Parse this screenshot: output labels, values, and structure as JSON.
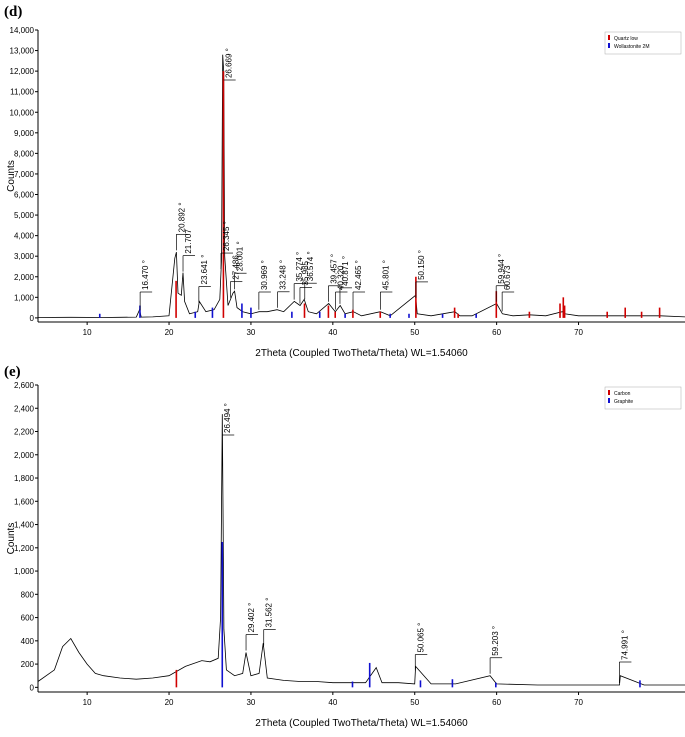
{
  "chart_data": [
    {
      "type": "line",
      "panel": "(d)",
      "xlabel": "2Theta (Coupled TwoTheta/Theta) WL=1.54060",
      "ylabel": "Counts",
      "xlim": [
        4,
        83
      ],
      "ylim": [
        -200,
        14000
      ],
      "xticks": [
        10,
        20,
        30,
        40,
        50,
        60,
        70
      ],
      "yticks": [
        0,
        {
          "value": 1000,
          "label": "1,000"
        },
        {
          "value": 2000,
          "label": "2,000"
        },
        {
          "value": 3000,
          "label": "3,000"
        },
        {
          "value": 4000,
          "label": "4,000"
        },
        {
          "value": 5000,
          "label": "5,000"
        },
        {
          "value": 6000,
          "label": "6,000"
        },
        {
          "value": 7000,
          "label": "7,000"
        },
        {
          "value": 8000,
          "label": "8,000"
        },
        {
          "value": 9000,
          "label": "9,000"
        },
        {
          "value": 10000,
          "label": "10,000"
        },
        {
          "value": 11000,
          "label": "11,000"
        },
        {
          "value": 12000,
          "label": "12,000"
        },
        {
          "value": 13000,
          "label": "13,000"
        },
        {
          "value": 14000,
          "label": "14,000"
        }
      ],
      "series": [
        {
          "color": "#000000",
          "x": [
            4,
            8,
            12,
            14,
            16,
            16.4,
            16.6,
            18,
            20,
            20.7,
            20.9,
            21.1,
            21.5,
            21.7,
            21.9,
            22.5,
            23.5,
            23.7,
            24.5,
            25.5,
            26.2,
            26.4,
            26.55,
            26.67,
            26.8,
            27.2,
            27.5,
            27.8,
            28.0,
            28.3,
            29,
            30,
            31,
            32,
            33.2,
            34,
            35.3,
            36,
            36.5,
            37,
            38,
            39.5,
            40.3,
            40.9,
            41.5,
            42.5,
            43.5,
            45.8,
            47,
            50.1,
            50.3,
            52,
            54.9,
            55.5,
            57,
            60,
            60.7,
            62,
            64,
            66,
            68,
            68.3,
            70,
            73.5,
            76,
            80,
            83
          ],
          "values": [
            20,
            30,
            20,
            30,
            40,
            400,
            40,
            50,
            100,
            2900,
            3200,
            1200,
            1100,
            2200,
            800,
            200,
            300,
            800,
            300,
            400,
            900,
            2800,
            12800,
            12000,
            3000,
            600,
            900,
            1200,
            1300,
            500,
            300,
            200,
            300,
            300,
            400,
            300,
            800,
            600,
            900,
            300,
            200,
            700,
            300,
            600,
            200,
            300,
            100,
            300,
            100,
            1100,
            200,
            100,
            300,
            100,
            100,
            700,
            200,
            100,
            150,
            100,
            300,
            200,
            100,
            100,
            100,
            100,
            50
          ]
        },
        {
          "name": "Quartz low",
          "color": "#d00000",
          "style": "stick",
          "x": [
            20.86,
            26.64,
            36.54,
            39.46,
            40.29,
            42.45,
            45.79,
            50.14,
            54.87,
            55.3,
            59.96,
            64.0,
            67.74,
            68.14,
            68.3,
            73.5,
            75.7,
            77.7,
            79.9
          ],
          "values": [
            1800,
            12000,
            700,
            600,
            300,
            400,
            300,
            2000,
            500,
            200,
            1300,
            300,
            700,
            1000,
            600,
            300,
            500,
            300,
            500
          ]
        },
        {
          "name": "Wollastonite 2M",
          "color": "#1010d0",
          "style": "stick",
          "x": [
            11.54,
            16.45,
            23.2,
            25.3,
            28.9,
            30.0,
            35.0,
            38.4,
            41.5,
            47.0,
            49.3,
            53.4,
            57.5
          ],
          "values": [
            200,
            600,
            300,
            500,
            700,
            500,
            300,
            300,
            200,
            200,
            200,
            200,
            200
          ]
        }
      ],
      "annotations": [
        {
          "x": 16.47,
          "label": "16.470 °"
        },
        {
          "x": 20.892,
          "label": "20.892 °"
        },
        {
          "x": 21.707,
          "label": "21.707"
        },
        {
          "x": 23.641,
          "label": "23.641 °"
        },
        {
          "x": 26.345,
          "label": "26.345 °"
        },
        {
          "x": 26.669,
          "label": "26.669 °"
        },
        {
          "x": 27.486,
          "label": "27.486"
        },
        {
          "x": 28.001,
          "label": "28.001 °"
        },
        {
          "x": 30.969,
          "label": "30.969 °"
        },
        {
          "x": 33.248,
          "label": "33.248 °"
        },
        {
          "x": 35.274,
          "label": "35.274 °"
        },
        {
          "x": 35.985,
          "label": "35.985"
        },
        {
          "x": 36.574,
          "label": "36.574 °"
        },
        {
          "x": 39.457,
          "label": "39.457 °"
        },
        {
          "x": 40.32,
          "label": "40.320"
        },
        {
          "x": 40.871,
          "label": "40.871 °"
        },
        {
          "x": 42.465,
          "label": "42.465 °"
        },
        {
          "x": 45.801,
          "label": "45.801 °"
        },
        {
          "x": 50.15,
          "label": "50.150 °"
        },
        {
          "x": 59.944,
          "label": "59.944 °"
        },
        {
          "x": 60.673,
          "label": "60.673"
        }
      ]
    },
    {
      "type": "line",
      "panel": "(e)",
      "xlabel": "2Theta (Coupled TwoTheta/Theta) WL=1.54060",
      "ylabel": "Counts",
      "xlim": [
        4,
        83
      ],
      "ylim": [
        -40,
        2600
      ],
      "xticks": [
        10,
        20,
        30,
        40,
        50,
        60,
        70
      ],
      "yticks": [
        0,
        200,
        400,
        600,
        800,
        {
          "value": 1000,
          "label": "1,000"
        },
        {
          "value": 1200,
          "label": "1,200"
        },
        {
          "value": 1400,
          "label": "1,400"
        },
        {
          "value": 1600,
          "label": "1,600"
        },
        {
          "value": 1800,
          "label": "1,800"
        },
        {
          "value": 2000,
          "label": "2,000"
        },
        {
          "value": 2200,
          "label": "2,200"
        },
        {
          "value": 2400,
          "label": "2,400"
        },
        {
          "value": 2600,
          "label": "2,600"
        }
      ],
      "series": [
        {
          "color": "#000000",
          "x": [
            4,
            6,
            7,
            8,
            9,
            10,
            11,
            12,
            14,
            16,
            18,
            20,
            22,
            24,
            25,
            26,
            26.3,
            26.5,
            26.7,
            27,
            28,
            29,
            29.4,
            30,
            31,
            31.5,
            32,
            34,
            36,
            38,
            40,
            42,
            44,
            45.3,
            46,
            48,
            50,
            50.1,
            52,
            55,
            59.2,
            60,
            65,
            70,
            75,
            75.1,
            78,
            83
          ],
          "values": [
            50,
            150,
            350,
            420,
            300,
            200,
            120,
            100,
            80,
            70,
            80,
            100,
            180,
            230,
            220,
            250,
            600,
            2350,
            500,
            150,
            100,
            120,
            300,
            100,
            120,
            380,
            80,
            60,
            50,
            50,
            40,
            40,
            40,
            170,
            40,
            40,
            30,
            180,
            30,
            30,
            100,
            30,
            20,
            20,
            20,
            100,
            20,
            20
          ]
        },
        {
          "name": "Carbon",
          "color": "#d00000",
          "style": "stick",
          "x": [
            20.9
          ],
          "values": [
            150
          ]
        },
        {
          "name": "Graphite",
          "color": "#1010d0",
          "style": "stick",
          "x": [
            26.5,
            42.4,
            44.5,
            50.7,
            54.6,
            59.9,
            77.5
          ],
          "values": [
            1250,
            50,
            210,
            60,
            70,
            40,
            60
          ]
        }
      ],
      "annotations": [
        {
          "x": 26.494,
          "label": "26.494 °"
        },
        {
          "x": 29.402,
          "label": "29.402 °"
        },
        {
          "x": 31.562,
          "label": "31.562 °"
        },
        {
          "x": 50.065,
          "label": "50.065 °"
        },
        {
          "x": 59.203,
          "label": "59.203 °"
        },
        {
          "x": 74.991,
          "label": "74.991 °"
        }
      ]
    }
  ]
}
